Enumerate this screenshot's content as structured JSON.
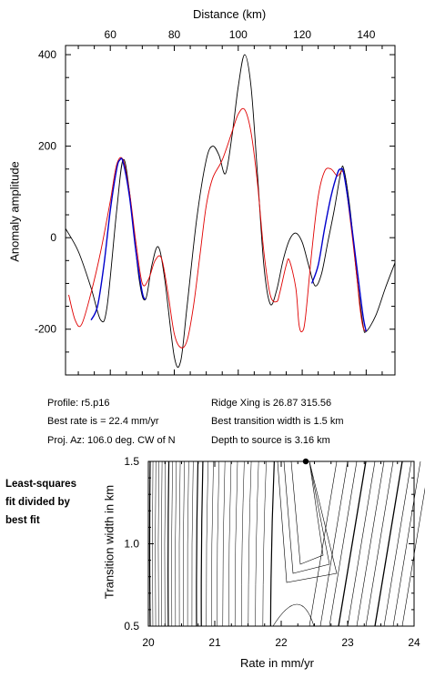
{
  "chart_data": [
    {
      "type": "line",
      "xlabel": "Distance (km)",
      "ylabel": "Anomaly amplitude",
      "xlim": [
        46,
        149
      ],
      "ylim": [
        -300,
        420
      ],
      "xticks": [
        60,
        80,
        100,
        120,
        140
      ],
      "yticks": [
        -200,
        0,
        200,
        400
      ],
      "grid": false,
      "series": [
        {
          "color": "#000000",
          "values": [
            [
              46,
              20
            ],
            [
              50,
              -30
            ],
            [
              54,
              -110
            ],
            [
              57,
              -180
            ],
            [
              59,
              -150
            ],
            [
              62,
              60
            ],
            [
              64,
              170
            ],
            [
              66,
              100
            ],
            [
              69,
              -90
            ],
            [
              71,
              -135
            ],
            [
              73,
              -60
            ],
            [
              75,
              -20
            ],
            [
              77,
              -90
            ],
            [
              80,
              -260
            ],
            [
              82,
              -270
            ],
            [
              84,
              -150
            ],
            [
              87,
              40
            ],
            [
              90,
              170
            ],
            [
              92,
              200
            ],
            [
              94,
              180
            ],
            [
              96,
              140
            ],
            [
              98,
              220
            ],
            [
              100,
              330
            ],
            [
              102,
              400
            ],
            [
              104,
              330
            ],
            [
              106,
              140
            ],
            [
              108,
              -60
            ],
            [
              110,
              -145
            ],
            [
              112,
              -115
            ],
            [
              114,
              -50
            ],
            [
              116,
              -5
            ],
            [
              118,
              10
            ],
            [
              120,
              -10
            ],
            [
              122,
              -60
            ],
            [
              124,
              -105
            ],
            [
              126,
              -80
            ],
            [
              128,
              -10
            ],
            [
              130,
              60
            ],
            [
              132,
              140
            ],
            [
              133,
              150
            ],
            [
              135,
              60
            ],
            [
              137,
              -80
            ],
            [
              139,
              -190
            ],
            [
              140,
              -205
            ],
            [
              143,
              -170
            ],
            [
              146,
              -110
            ],
            [
              149,
              -55
            ]
          ]
        },
        {
          "color": "#e00000",
          "values": [
            [
              47,
              -125
            ],
            [
              49,
              -180
            ],
            [
              51,
              -190
            ],
            [
              54,
              -120
            ],
            [
              57,
              -30
            ],
            [
              60,
              80
            ],
            [
              62,
              160
            ],
            [
              64,
              170
            ],
            [
              66,
              100
            ],
            [
              68,
              -10
            ],
            [
              70,
              -100
            ],
            [
              72,
              -90
            ],
            [
              74,
              -50
            ],
            [
              76,
              -45
            ],
            [
              78,
              -120
            ],
            [
              80,
              -210
            ],
            [
              82,
              -240
            ],
            [
              84,
              -225
            ],
            [
              86,
              -150
            ],
            [
              88,
              -40
            ],
            [
              90,
              70
            ],
            [
              92,
              130
            ],
            [
              95,
              170
            ],
            [
              98,
              230
            ],
            [
              100,
              270
            ],
            [
              102,
              280
            ],
            [
              104,
              230
            ],
            [
              106,
              120
            ],
            [
              108,
              -30
            ],
            [
              110,
              -125
            ],
            [
              112,
              -140
            ],
            [
              113,
              -120
            ],
            [
              115,
              -60
            ],
            [
              116,
              -50
            ],
            [
              118,
              -110
            ],
            [
              119,
              -190
            ],
            [
              120,
              -205
            ],
            [
              121,
              -175
            ],
            [
              123,
              -30
            ],
            [
              125,
              90
            ],
            [
              127,
              145
            ],
            [
              129,
              150
            ],
            [
              131,
              135
            ],
            [
              133,
              140
            ],
            [
              135,
              40
            ],
            [
              137,
              -80
            ],
            [
              138,
              -150
            ],
            [
              139,
              -195
            ],
            [
              140,
              -205
            ]
          ]
        },
        {
          "color": "#0000cc",
          "values": [
            [
              54,
              -180
            ],
            [
              56,
              -150
            ],
            [
              58,
              -60
            ],
            [
              60,
              60
            ],
            [
              62,
              150
            ],
            [
              63,
              170
            ],
            [
              64,
              165
            ],
            [
              66,
              90
            ],
            [
              68,
              -30
            ],
            [
              70,
              -120
            ],
            [
              71,
              -135
            ]
          ]
        },
        {
          "color": "#0000cc",
          "values": [
            [
              123,
              -100
            ],
            [
              125,
              -60
            ],
            [
              127,
              20
            ],
            [
              129,
              90
            ],
            [
              131,
              140
            ],
            [
              132,
              150
            ],
            [
              133,
              140
            ],
            [
              135,
              50
            ],
            [
              137,
              -60
            ],
            [
              139,
              -170
            ],
            [
              140,
              -205
            ]
          ]
        }
      ]
    },
    {
      "type": "contour",
      "xlabel": "Rate in mm/yr",
      "ylabel": "Transition width in km",
      "xlim": [
        20,
        24
      ],
      "ylim": [
        0.5,
        1.5
      ],
      "xticks": [
        "20",
        "21",
        "22",
        "23",
        "24"
      ],
      "yticks": [
        "0.5",
        "1.0",
        "1.5"
      ],
      "best_fit": {
        "rate": 22.4,
        "width": 1.5
      }
    }
  ],
  "info": {
    "profile": "Profile: r5.p16",
    "best_rate": "Best rate is = 22.4 mm/yr",
    "proj_az": "Proj. Az: 106.0 deg. CW of N",
    "ridge_xing": "Ridge Xing is 26.87 315.56",
    "best_transition": "Best transition width is 1.5 km",
    "depth": "Depth to source is   3.16 km"
  },
  "side_label": [
    "Least-squares",
    "fit divided by",
    "best fit"
  ]
}
